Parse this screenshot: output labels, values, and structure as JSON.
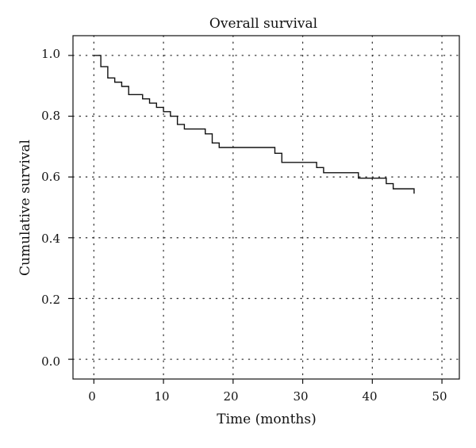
{
  "chart_data": {
    "type": "line",
    "title": "Overall survival",
    "xlabel": "Time (months)",
    "ylabel": "Cumulative survival",
    "xlim": [
      -3,
      52.5
    ],
    "ylim": [
      -0.065,
      1.065
    ],
    "xticks": [
      "0",
      "10",
      "20",
      "30",
      "40",
      "50"
    ],
    "yticks": [
      "0.0",
      "0.2",
      "0.4",
      "0.6",
      "0.8",
      "1.0"
    ],
    "grid": true,
    "series": [
      {
        "step": "post",
        "x": [
          0,
          1,
          2,
          3,
          4,
          5,
          7,
          8,
          9,
          10,
          11,
          12,
          13,
          16,
          17,
          18,
          26,
          27,
          32,
          33,
          38,
          42,
          43,
          46
        ],
        "y": [
          1.0,
          0.963,
          0.926,
          0.912,
          0.898,
          0.871,
          0.857,
          0.843,
          0.829,
          0.815,
          0.8,
          0.773,
          0.758,
          0.742,
          0.712,
          0.697,
          0.678,
          0.648,
          0.631,
          0.614,
          0.596,
          0.578,
          0.561,
          0.545
        ]
      }
    ]
  }
}
